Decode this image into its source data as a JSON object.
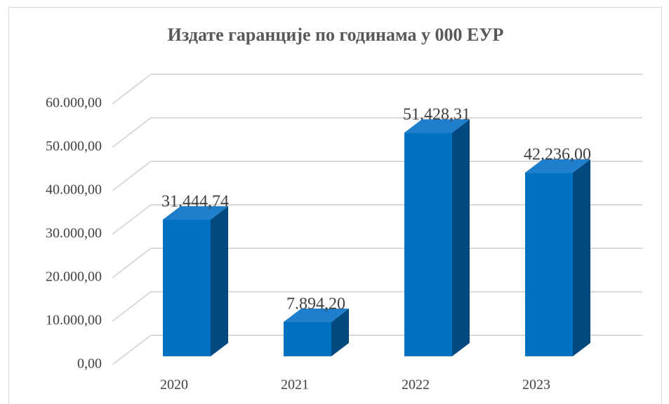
{
  "chart_data": {
    "type": "bar3d",
    "title": "Издате гаранције по годинама у 000 ЕУР",
    "categories": [
      "2020",
      "2021",
      "2022",
      "2023"
    ],
    "values": [
      31444.74,
      7894.2,
      51428.31,
      42236
    ],
    "value_labels": [
      "31.444,74",
      "7.894,20",
      "51.428,31",
      "42.236,00"
    ],
    "color": "#0070c0",
    "ylim": [
      0,
      60000
    ],
    "yticks": [
      {
        "value": 0,
        "label": "0,00"
      },
      {
        "value": 10000,
        "label": "10.000,00"
      },
      {
        "value": 20000,
        "label": "20.000,00"
      },
      {
        "value": 30000,
        "label": "30.000,00"
      },
      {
        "value": 40000,
        "label": "40.000,00"
      },
      {
        "value": 50000,
        "label": "50.000,00"
      },
      {
        "value": 60000,
        "label": "60.000,00"
      }
    ],
    "grid": true
  }
}
